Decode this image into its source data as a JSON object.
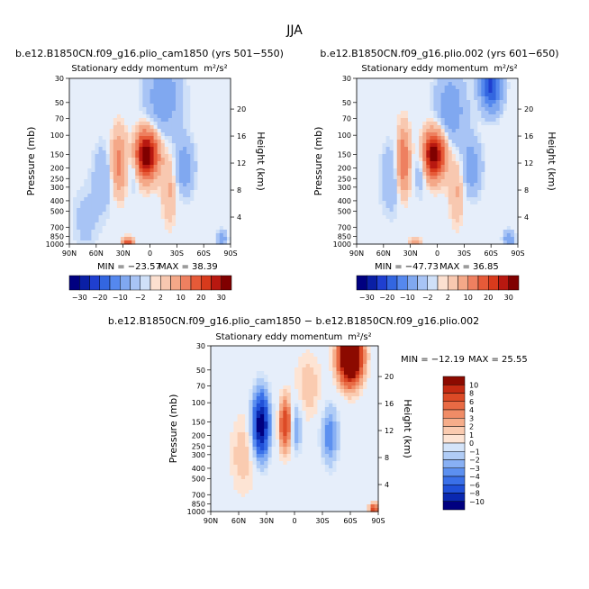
{
  "figure_title": "JJA",
  "colors": {
    "neg": [
      "#000080",
      "#0a1fa5",
      "#1f3fd0",
      "#3366e0",
      "#5588ee",
      "#80a8f0",
      "#a8c4f5",
      "#cfe0f8"
    ],
    "zero": "#e6eefa",
    "pos": [
      "#fce0d0",
      "#f8c8b0",
      "#f4a888",
      "#ee8060",
      "#e65a38",
      "#d83a1c",
      "#b81810",
      "#800000"
    ],
    "diff_neg": [
      "#000080",
      "#0a28b0",
      "#2050d8",
      "#3a70e8",
      "#5c90f0",
      "#88b0f4",
      "#b0ccf6",
      "#d4e4f9"
    ],
    "diff_pos": [
      "#fde4d4",
      "#facbb0",
      "#f6ad8a",
      "#f08c66",
      "#e86a44",
      "#dc4a26",
      "#c42a12",
      "#8c0a00"
    ]
  },
  "chart_data": [
    {
      "type": "heatmap",
      "id": "left",
      "run": "b.e12.B1850CN.f09_g16.plio_cam1850 (yrs 501−550)",
      "title": "Stationary eddy momentum",
      "units": "m²/s²",
      "xticks": [
        "90N",
        "60N",
        "30N",
        "0",
        "30S",
        "60S",
        "90S"
      ],
      "x_values": [
        90,
        60,
        30,
        0,
        -30,
        -60,
        -90
      ],
      "yticks": [
        "30",
        "50",
        "70",
        "100",
        "150",
        "200",
        "250",
        "300",
        "400",
        "500",
        "700",
        "850",
        "1000"
      ],
      "y_values": [
        30,
        50,
        70,
        100,
        150,
        200,
        250,
        300,
        400,
        500,
        700,
        850,
        1000
      ],
      "ylabel": "Pressure (mb)",
      "right_ticks": [
        "20",
        "16",
        "12",
        "8",
        "4"
      ],
      "right_values": [
        20,
        16,
        12,
        8,
        4
      ],
      "right_label": "Height (km)",
      "min_label": "MIN = −23.57",
      "max_label": "MAX =  38.39",
      "min": -23.57,
      "max": 38.39,
      "features": [
        {
          "lat": 4,
          "p": 150,
          "amp": 38,
          "wlat": 9,
          "wp": 0.33
        },
        {
          "lat": 35,
          "p": 180,
          "amp": 12,
          "wlat": 6,
          "wp": 0.45
        },
        {
          "lat": -22,
          "p": 300,
          "amp": 6,
          "wlat": 6,
          "wp": 0.5
        },
        {
          "lat": -15,
          "p": 45,
          "amp": -8,
          "wlat": 14,
          "wp": 0.6
        },
        {
          "lat": 18,
          "p": 180,
          "amp": -6,
          "wlat": 5,
          "wp": 0.4
        },
        {
          "lat": -38,
          "p": 200,
          "amp": -8,
          "wlat": 8,
          "wp": 0.4
        },
        {
          "lat": 52,
          "p": 250,
          "amp": -5,
          "wlat": 8,
          "wp": 0.5
        },
        {
          "lat": 25,
          "p": 980,
          "amp": 20,
          "wlat": 4,
          "wp": 0.08
        },
        {
          "lat": 72,
          "p": 600,
          "amp": -3,
          "wlat": 10,
          "wp": 0.5
        },
        {
          "lat": -80,
          "p": 900,
          "amp": -8,
          "wlat": 4,
          "wp": 0.12
        }
      ],
      "colorbar": {
        "labels": [
          "−30",
          "−20",
          "−10",
          "−2",
          "2",
          "10",
          "20",
          "30"
        ],
        "levels": [
          -30,
          -25,
          -20,
          -15,
          -10,
          -5,
          -2,
          -1,
          1,
          2,
          5,
          10,
          15,
          20,
          25,
          30
        ]
      }
    },
    {
      "type": "heatmap",
      "id": "right",
      "run": "b.e12.B1850CN.f09_g16.plio.002 (yrs 601−650)",
      "title": "Stationary eddy momentum",
      "units": "m²/s²",
      "xticks": [
        "90N",
        "60N",
        "30N",
        "0",
        "30S",
        "60S",
        "90S"
      ],
      "x_values": [
        90,
        60,
        30,
        0,
        -30,
        -60,
        -90
      ],
      "yticks": [
        "30",
        "50",
        "70",
        "100",
        "150",
        "200",
        "250",
        "300",
        "400",
        "500",
        "700",
        "850",
        "1000"
      ],
      "y_values": [
        30,
        50,
        70,
        100,
        150,
        200,
        250,
        300,
        400,
        500,
        700,
        850,
        1000
      ],
      "ylabel": "Pressure (mb)",
      "right_ticks": [
        "20",
        "16",
        "12",
        "8",
        "4"
      ],
      "right_values": [
        20,
        16,
        12,
        8,
        4
      ],
      "right_label": "Height (km)",
      "min_label": "MIN = −47.73",
      "max_label": "MAX =  36.85",
      "min": -47.73,
      "max": 36.85,
      "features": [
        {
          "lat": 4,
          "p": 150,
          "amp": 36,
          "wlat": 9,
          "wp": 0.33
        },
        {
          "lat": 38,
          "p": 170,
          "amp": 16,
          "wlat": 5,
          "wp": 0.45
        },
        {
          "lat": -22,
          "p": 300,
          "amp": 6,
          "wlat": 6,
          "wp": 0.5
        },
        {
          "lat": -60,
          "p": 35,
          "amp": -22,
          "wlat": 8,
          "wp": 0.35
        },
        {
          "lat": -15,
          "p": 60,
          "amp": -8,
          "wlat": 12,
          "wp": 0.6
        },
        {
          "lat": 18,
          "p": 180,
          "amp": -8,
          "wlat": 5,
          "wp": 0.4
        },
        {
          "lat": -38,
          "p": 200,
          "amp": -8,
          "wlat": 8,
          "wp": 0.4
        },
        {
          "lat": 52,
          "p": 250,
          "amp": -5,
          "wlat": 8,
          "wp": 0.5
        },
        {
          "lat": 25,
          "p": 980,
          "amp": 10,
          "wlat": 4,
          "wp": 0.08
        },
        {
          "lat": -80,
          "p": 900,
          "amp": -10,
          "wlat": 4,
          "wp": 0.12
        }
      ],
      "colorbar": {
        "labels": [
          "−30",
          "−20",
          "−10",
          "−2",
          "2",
          "10",
          "20",
          "30"
        ],
        "levels": [
          -30,
          -25,
          -20,
          -15,
          -10,
          -5,
          -2,
          -1,
          1,
          2,
          5,
          10,
          15,
          20,
          25,
          30
        ]
      }
    },
    {
      "type": "heatmap",
      "id": "diff",
      "run": "b.e12.B1850CN.f09_g16.plio_cam1850 − b.e12.B1850CN.f09_g16.plio.002",
      "title": "Stationary eddy momentum",
      "units": "m²/s²",
      "xticks": [
        "90N",
        "60N",
        "30N",
        "0",
        "30S",
        "60S",
        "90S"
      ],
      "x_values": [
        90,
        60,
        30,
        0,
        -30,
        -60,
        -90
      ],
      "yticks": [
        "30",
        "50",
        "70",
        "100",
        "150",
        "200",
        "250",
        "300",
        "400",
        "500",
        "700",
        "850",
        "1000"
      ],
      "y_values": [
        30,
        50,
        70,
        100,
        150,
        200,
        250,
        300,
        400,
        500,
        700,
        850,
        1000
      ],
      "ylabel": "Pressure (mb)",
      "right_ticks": [
        "20",
        "16",
        "12",
        "8",
        "4"
      ],
      "right_values": [
        20,
        16,
        12,
        8,
        4
      ],
      "right_label": "Height (km)",
      "min_label": "MIN = −12.19",
      "max_label": "MAX =  25.55",
      "min": -12.19,
      "max": 25.55,
      "features": [
        {
          "lat": -60,
          "p": 38,
          "amp": 22,
          "wlat": 8,
          "wp": 0.35
        },
        {
          "lat": 36,
          "p": 160,
          "amp": -12,
          "wlat": 6,
          "wp": 0.45
        },
        {
          "lat": 10,
          "p": 160,
          "amp": 8,
          "wlat": 4,
          "wp": 0.35
        },
        {
          "lat": -2,
          "p": 170,
          "amp": -3,
          "wlat": 4,
          "wp": 0.35
        },
        {
          "lat": -38,
          "p": 200,
          "amp": -4,
          "wlat": 6,
          "wp": 0.4
        },
        {
          "lat": 55,
          "p": 300,
          "amp": 1.5,
          "wlat": 10,
          "wp": 0.6
        },
        {
          "lat": -15,
          "p": 70,
          "amp": 1.5,
          "wlat": 10,
          "wp": 0.5
        },
        {
          "lat": -85,
          "p": 950,
          "amp": 8,
          "wlat": 3,
          "wp": 0.08
        }
      ],
      "colorbar": {
        "labels": [
          "10",
          "8",
          "6",
          "4",
          "3",
          "2",
          "1",
          "0",
          "−1",
          "−2",
          "−3",
          "−4",
          "−6",
          "−8",
          "−10"
        ],
        "levels": [
          10,
          8,
          6,
          4,
          3,
          2,
          1,
          0,
          -1,
          -2,
          -3,
          -4,
          -6,
          -8,
          -10
        ]
      }
    }
  ]
}
